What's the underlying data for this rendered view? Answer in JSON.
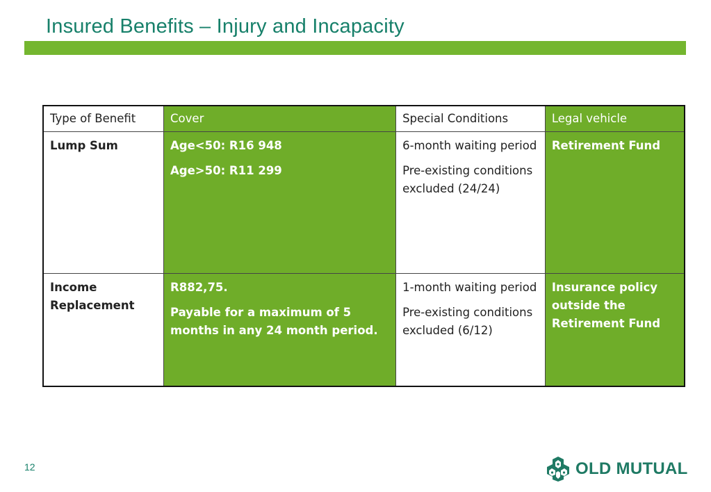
{
  "slide": {
    "title": "Insured Benefits – Injury and Incapacity",
    "page_number": "12",
    "colors": {
      "title": "#17806a",
      "accent_bar": "#74b62f",
      "cell_green": "#6fad29",
      "logo": "#1f7a64"
    }
  },
  "table": {
    "headers": {
      "type_of_benefit": "Type of Benefit",
      "cover": "Cover",
      "special_conditions": "Special Conditions",
      "legal_vehicle": "Legal vehicle"
    },
    "rows": [
      {
        "type": "Lump Sum",
        "cover": [
          "Age<50: R16 948",
          "Age>50: R11 299"
        ],
        "conditions": [
          "6-month waiting period",
          "Pre-existing conditions excluded (24/24)"
        ],
        "legal_vehicle": "Retirement Fund"
      },
      {
        "type": "Income Replacement",
        "cover": [
          "R882,75.",
          "Payable for a maximum of 5 months in any 24 month period."
        ],
        "conditions": [
          "1-month waiting period",
          "Pre-existing conditions excluded (6/12)"
        ],
        "legal_vehicle": "Insurance policy outside the Retirement Fund"
      }
    ]
  },
  "logo": {
    "text": "OLD MUTUAL",
    "icon": "old-mutual-crest-icon"
  }
}
